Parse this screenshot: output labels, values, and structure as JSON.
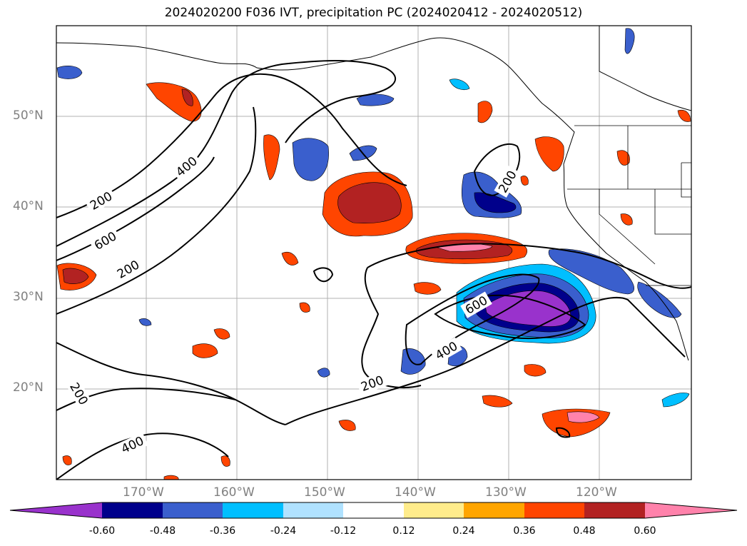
{
  "title": "2024020200 F036 IVT, precipitation PC (2024020412 - 2024020512)",
  "map": {
    "lat_labels": [
      "50°N",
      "40°N",
      "30°N",
      "20°N"
    ],
    "lon_labels": [
      "170°W",
      "160°W",
      "150°W",
      "140°W",
      "130°W",
      "120°W"
    ],
    "ivt_contour_labels": [
      "200",
      "400",
      "600",
      "200",
      "600",
      "400",
      "200",
      "200",
      "200",
      "400"
    ]
  },
  "colorbar": {
    "ticks": [
      "-0.60",
      "-0.48",
      "-0.36",
      "-0.24",
      "-0.12",
      "0.12",
      "0.24",
      "0.36",
      "0.48",
      "0.60"
    ],
    "colors": [
      "#9932cc",
      "#00008b",
      "#3a5fcd",
      "#00bfff",
      "#b0e2ff",
      "#ffffff",
      "#ffec8b",
      "#ffa500",
      "#ff4500",
      "#b22222",
      "#ff82ab"
    ]
  }
}
